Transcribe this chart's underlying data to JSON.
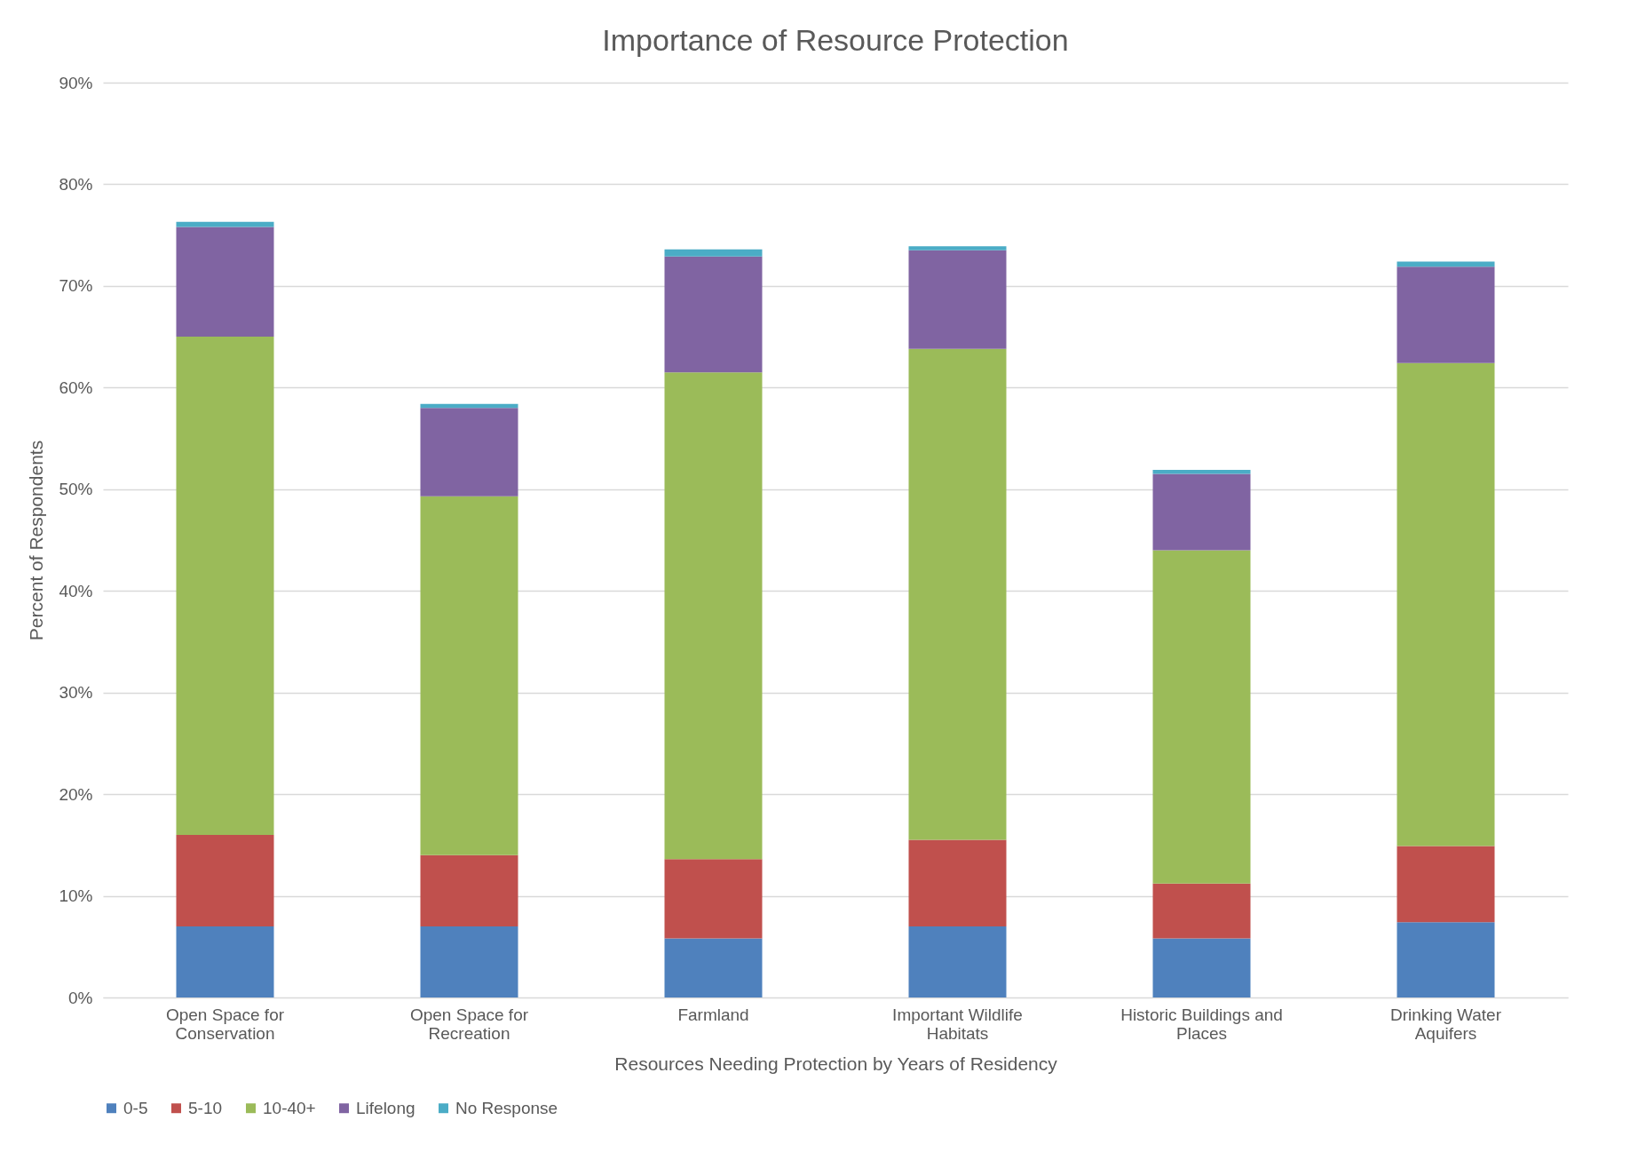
{
  "chart_data": {
    "type": "bar",
    "title": "Importance of Resource Protection",
    "xlabel": "Resources Needing Protection by Years of Residency",
    "ylabel": "Percent of Respondents",
    "categories": [
      "Open Space for Conservation",
      "Open Space for Recreation",
      "Farmland",
      "Important Wildlife Habitats",
      "Historic Buildings and Places",
      "Drinking Water Aquifers"
    ],
    "stacked": true,
    "series": [
      {
        "name": "0-5",
        "color": "#4f81bd",
        "values": [
          7.0,
          7.0,
          5.8,
          7.0,
          5.8,
          7.4
        ]
      },
      {
        "name": "5-10",
        "color": "#c0504d",
        "values": [
          9.0,
          7.0,
          7.8,
          8.5,
          5.4,
          7.5
        ]
      },
      {
        "name": "10-40+",
        "color": "#9bbb59",
        "values": [
          49.0,
          35.3,
          47.9,
          48.3,
          32.8,
          47.5
        ]
      },
      {
        "name": "Lifelong",
        "color": "#8064a2",
        "values": [
          10.8,
          8.7,
          11.4,
          9.7,
          7.5,
          9.5
        ]
      },
      {
        "name": "No Response",
        "color": "#4bacc6",
        "values": [
          0.5,
          0.4,
          0.7,
          0.4,
          0.4,
          0.5
        ]
      }
    ],
    "ylim": [
      0,
      90
    ],
    "yticks": [
      {
        "value": 0,
        "label": "0%"
      },
      {
        "value": 10,
        "label": "10%"
      },
      {
        "value": 20,
        "label": "20%"
      },
      {
        "value": 30,
        "label": "30%"
      },
      {
        "value": 40,
        "label": "40%"
      },
      {
        "value": 50,
        "label": "50%"
      },
      {
        "value": 60,
        "label": "60%"
      },
      {
        "value": 70,
        "label": "70%"
      },
      {
        "value": 80,
        "label": "80%"
      },
      {
        "value": 90,
        "label": "90%"
      }
    ],
    "grid": "y",
    "legend": "bottom"
  }
}
